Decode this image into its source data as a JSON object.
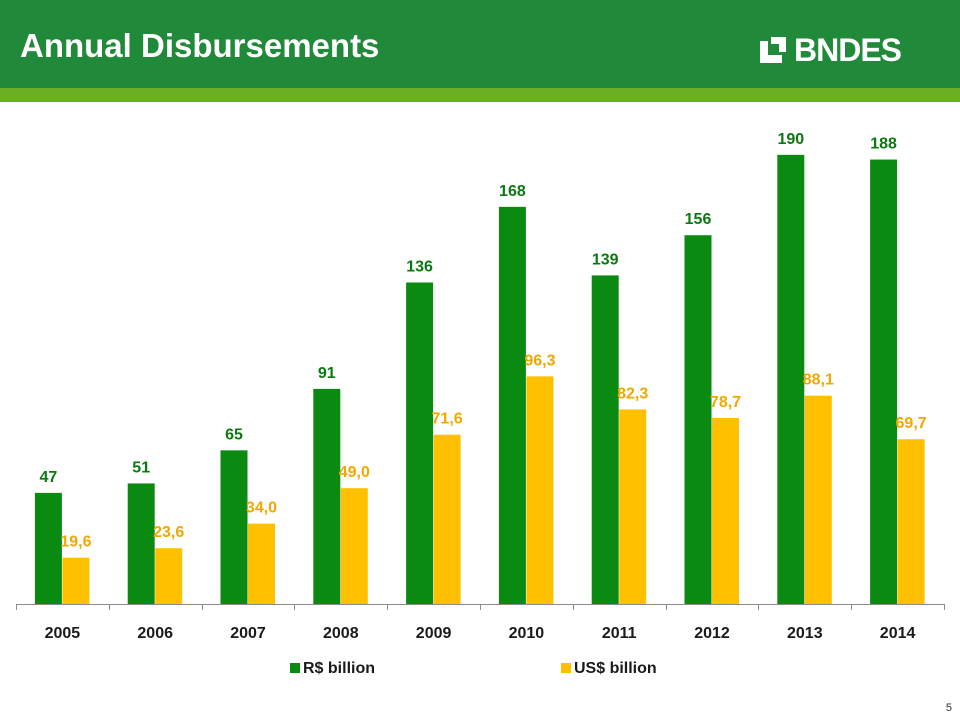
{
  "header": {
    "title": "Annual Disbursements",
    "logo_text": "BNDES",
    "logo_icon": "bndes-logo-mark"
  },
  "colors": {
    "header_green": "#218a3a",
    "stripe_green": "#6ab023",
    "brl_bar": "#0a8a10",
    "usd_bar": "#ffc000",
    "brl_label": "#0a7a10",
    "usd_label": "#f0a800"
  },
  "chart_data": {
    "type": "bar",
    "title": "",
    "xlabel": "",
    "ylabel": "",
    "categories": [
      "2005",
      "2006",
      "2007",
      "2008",
      "2009",
      "2010",
      "2011",
      "2012",
      "2013",
      "2014"
    ],
    "series": [
      {
        "name": "R$ billion",
        "values": [
          47,
          51,
          65,
          91,
          136,
          168,
          139,
          156,
          190,
          188
        ],
        "labels": [
          "47",
          "51",
          "65",
          "91",
          "136",
          "168",
          "139",
          "156",
          "190",
          "188"
        ]
      },
      {
        "name": "US$ billion",
        "values": [
          19.6,
          23.6,
          34.0,
          49.0,
          71.6,
          96.3,
          82.3,
          78.7,
          88.1,
          69.7
        ],
        "labels": [
          "19,6",
          "23,6",
          "34,0",
          "49,0",
          "71,6",
          "96,3",
          "82,3",
          "78,7",
          "88,1",
          "69,7"
        ]
      }
    ],
    "ylim": [
      0,
      200
    ],
    "grid": false,
    "legend_position": "bottom",
    "data_labels": true
  },
  "footer": {
    "page_number": "5"
  }
}
